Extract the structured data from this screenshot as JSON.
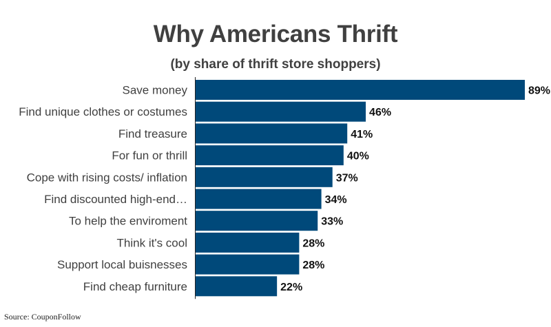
{
  "header": {
    "title": "Why Americans Thrift",
    "subtitle": "(by share of thrift store shoppers)"
  },
  "footer": {
    "source": "Source: CouponFollow"
  },
  "colors": {
    "bar": "#00497A",
    "axis": "#222222",
    "label_text": "#404040",
    "value_text": "#111111"
  },
  "chart_data": {
    "type": "bar",
    "orientation": "horizontal",
    "title": "Why Americans Thrift",
    "subtitle": "(by share of thrift store shoppers)",
    "categories": [
      "Save money",
      "Find unique clothes or costumes",
      "Find treasure",
      "For fun or thrill",
      "Cope with rising costs/ inflation",
      "Find discounted high-end…",
      "To help the enviroment",
      "Think it's cool",
      "Support local buisnesses",
      "Find cheap furniture"
    ],
    "values": [
      89,
      46,
      41,
      40,
      37,
      34,
      33,
      28,
      28,
      22
    ],
    "value_labels": [
      "89%",
      "46%",
      "41%",
      "40%",
      "37%",
      "34%",
      "33%",
      "28%",
      "28%",
      "22%"
    ],
    "unit": "%",
    "xlim": [
      0,
      89
    ],
    "grid": false,
    "legend": "none"
  }
}
